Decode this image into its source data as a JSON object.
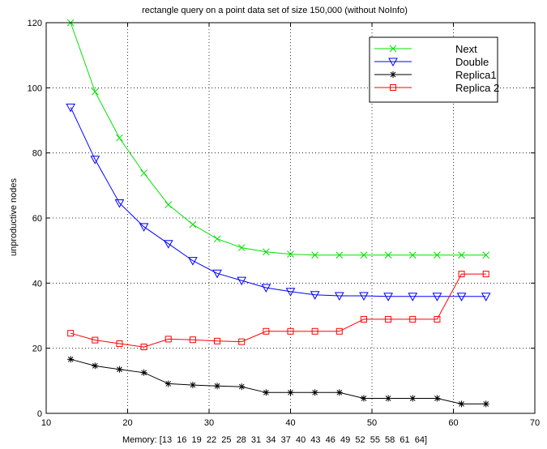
{
  "chart_data": {
    "type": "line",
    "title": "rectangle query on a point data set of size 150,000 (without NoInfo)",
    "xlabel": "Memory: [13  16  19  22  25  28  31  34  37  40  43  46  49  52  55  58  61  64]",
    "ylabel": "unproductive nodes",
    "xlim": [
      10,
      70
    ],
    "ylim": [
      0,
      120
    ],
    "xticks": [
      10,
      20,
      30,
      40,
      50,
      60,
      70
    ],
    "yticks": [
      0,
      20,
      40,
      60,
      80,
      100,
      120
    ],
    "grid": true,
    "legend_position": "top-right",
    "x": [
      13,
      16,
      19,
      22,
      25,
      28,
      31,
      34,
      37,
      40,
      43,
      46,
      49,
      52,
      55,
      58,
      61,
      64
    ],
    "series": [
      {
        "name": "Next",
        "color": "#00e000",
        "marker": "x",
        "values": [
          120,
          98.8,
          84.6,
          73.8,
          64.1,
          58.0,
          53.6,
          50.9,
          49.6,
          48.9,
          48.6,
          48.6,
          48.6,
          48.6,
          48.6,
          48.6,
          48.6,
          48.6
        ]
      },
      {
        "name": "Double",
        "color": "#0000ff",
        "marker": "triangle-down",
        "values": [
          94.0,
          78.0,
          64.6,
          57.3,
          52.1,
          46.9,
          43.0,
          40.8,
          38.6,
          37.4,
          36.4,
          36.1,
          36.1,
          35.9,
          35.9,
          35.9,
          35.9,
          35.9
        ]
      },
      {
        "name": "Replica1",
        "color": "#000000",
        "marker": "asterisk",
        "values": [
          16.6,
          14.6,
          13.5,
          12.5,
          9.1,
          8.7,
          8.4,
          8.2,
          6.4,
          6.4,
          6.4,
          6.4,
          4.6,
          4.6,
          4.6,
          4.6,
          2.9,
          2.9
        ]
      },
      {
        "name": "Replica 2",
        "color": "#ff0000",
        "marker": "square",
        "values": [
          24.6,
          22.5,
          21.4,
          20.4,
          22.8,
          22.6,
          22.2,
          22.0,
          25.2,
          25.2,
          25.2,
          25.2,
          28.9,
          28.9,
          28.9,
          28.9,
          42.8,
          42.8
        ]
      }
    ]
  }
}
